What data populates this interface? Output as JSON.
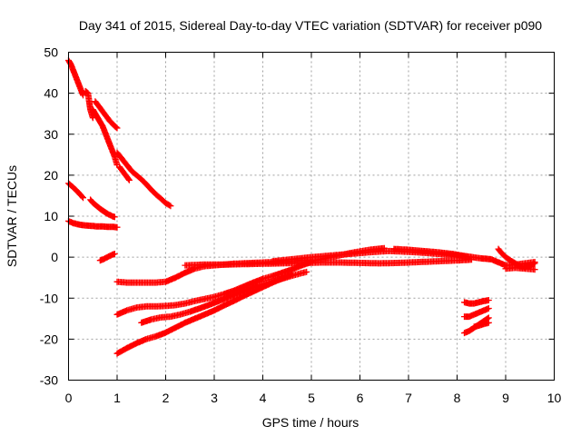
{
  "chart_data": {
    "type": "scatter",
    "title": "Day 341 of 2015, Sidereal Day-to-day VTEC variation (SDTVAR) for receiver p090",
    "xlabel": "GPS time / hours",
    "ylabel": "SDTVAR / TECUs",
    "xlim": [
      0,
      10
    ],
    "ylim": [
      -30,
      50
    ],
    "x_ticks": [
      0,
      1,
      2,
      3,
      4,
      5,
      6,
      7,
      8,
      9,
      10
    ],
    "y_ticks": [
      -30,
      -20,
      -10,
      0,
      10,
      20,
      30,
      40,
      50
    ],
    "x_tick_labels": [
      "0",
      "1",
      "2",
      "3",
      "4",
      "5",
      "6",
      "7",
      "8",
      "9",
      "10"
    ],
    "y_tick_labels": [
      "-30",
      "-20",
      "-10",
      "0",
      "10",
      "20",
      "30",
      "40",
      "50"
    ],
    "grid": true,
    "legend": "none",
    "marker": "plus",
    "color": "#ff0000",
    "series": [
      {
        "x": [
          0.0,
          0.05,
          0.1,
          0.15,
          0.2,
          0.25,
          0.3
        ],
        "y": [
          48,
          47,
          45.5,
          44,
          42.5,
          41,
          39.5
        ]
      },
      {
        "x": [
          0.35,
          0.4,
          0.45,
          0.5
        ],
        "y": [
          40.5,
          40,
          36,
          34
        ]
      },
      {
        "x": [
          0.5,
          0.55,
          0.6,
          0.65,
          0.7,
          0.75,
          0.8,
          0.85,
          0.9,
          0.95,
          1.0
        ],
        "y": [
          36,
          35,
          34,
          33,
          32,
          30.5,
          29,
          27.5,
          26,
          24.5,
          22.5
        ]
      },
      {
        "x": [
          0.55,
          0.6,
          0.65,
          0.7,
          0.75,
          0.8,
          0.85,
          0.9,
          0.95,
          1.0
        ],
        "y": [
          38,
          37.2,
          36.4,
          35.6,
          34.8,
          34,
          33.2,
          32.6,
          32,
          31.5
        ]
      },
      {
        "x": [
          1.0,
          1.1,
          1.2,
          1.3,
          1.4,
          1.5,
          1.6,
          1.7,
          1.8,
          1.9,
          2.0,
          2.1
        ],
        "y": [
          25.5,
          24,
          22.5,
          21,
          20,
          19,
          17.8,
          16.5,
          15.3,
          14.3,
          13.2,
          12.5
        ]
      },
      {
        "x": [
          1.05,
          1.1,
          1.15,
          1.2,
          1.25
        ],
        "y": [
          22,
          21.2,
          20.4,
          19.6,
          18.8
        ]
      },
      {
        "x": [
          0.0,
          0.1,
          0.2,
          0.3
        ],
        "y": [
          18,
          17,
          15.8,
          14.5
        ]
      },
      {
        "x": [
          0.45,
          0.5,
          0.55,
          0.6,
          0.65,
          0.7,
          0.75,
          0.8,
          0.85,
          0.9,
          0.95
        ],
        "y": [
          14,
          13.3,
          12.8,
          12.3,
          11.8,
          11.4,
          11,
          10.6,
          10.3,
          10,
          9.8
        ]
      },
      {
        "x": [
          0.0,
          0.1,
          0.2,
          0.3,
          0.4,
          0.5,
          0.6,
          0.7,
          0.8,
          0.9,
          1.0
        ],
        "y": [
          8.8,
          8.3,
          8,
          7.8,
          7.7,
          7.6,
          7.5,
          7.5,
          7.4,
          7.4,
          7.3
        ]
      },
      {
        "x": [
          0.65,
          0.7,
          0.75,
          0.8,
          0.85,
          0.9,
          0.95
        ],
        "y": [
          -0.8,
          -0.6,
          -0.3,
          0,
          0.3,
          0.6,
          0.8
        ]
      },
      {
        "x": [
          1.0,
          1.2,
          1.4,
          1.6,
          1.8,
          2.0,
          2.2,
          2.4,
          2.6,
          2.8,
          3.0,
          3.2,
          3.4,
          3.6,
          3.8,
          4.0,
          4.2,
          4.4,
          4.6,
          4.8,
          5.0
        ],
        "y": [
          -6,
          -6.2,
          -6.2,
          -6.2,
          -6.2,
          -6,
          -5,
          -3.8,
          -2.8,
          -2.2,
          -2,
          -1.8,
          -1.6,
          -1.5,
          -1.4,
          -1.3,
          -1.2,
          -1.1,
          -1,
          -0.8,
          -0.7
        ]
      },
      {
        "x": [
          2.4,
          2.8,
          3.2,
          3.6,
          4.0,
          4.4,
          4.8,
          5.2,
          5.6,
          6.0,
          6.4,
          6.8,
          7.2,
          7.6,
          8.0,
          8.3
        ],
        "y": [
          -2,
          -1.8,
          -1.8,
          -1.7,
          -1.6,
          -1.5,
          -1.4,
          -1.3,
          -1.3,
          -1.4,
          -1.5,
          -1.4,
          -1.2,
          -1,
          -0.8,
          -0.6
        ]
      },
      {
        "x": [
          4.2,
          4.6,
          5.0,
          5.4,
          5.8,
          6.2,
          6.6,
          7.0,
          7.4,
          7.8,
          8.2
        ],
        "y": [
          -1,
          -0.5,
          0,
          0.4,
          0.8,
          1.2,
          1.5,
          1.3,
          1.0,
          0.6,
          0.2
        ]
      },
      {
        "x": [
          5.0,
          5.4,
          5.8,
          6.2,
          6.5
        ],
        "y": [
          -1,
          0,
          1,
          1.8,
          2.2
        ]
      },
      {
        "x": [
          6.7,
          7.0,
          7.3,
          7.6,
          7.9,
          8.2,
          8.5
        ],
        "y": [
          2,
          1.8,
          1.5,
          1.2,
          0.8,
          0.2,
          -0.3
        ]
      },
      {
        "x": [
          8.5,
          8.6,
          8.7,
          8.8,
          8.9,
          9.0,
          9.2,
          9.4,
          9.6
        ],
        "y": [
          -0.3,
          -0.4,
          -0.5,
          -1,
          -1.5,
          -2,
          -1.8,
          -1.5,
          -1.2
        ]
      },
      {
        "x": [
          8.85,
          8.9,
          9.0,
          9.1,
          9.2,
          9.3,
          9.4,
          9.5,
          9.6
        ],
        "y": [
          2,
          1.2,
          0,
          -0.8,
          -1.5,
          -2.2,
          -2.5,
          -2,
          -1.5
        ]
      },
      {
        "x": [
          9.0,
          9.2,
          9.4,
          9.6
        ],
        "y": [
          -2.8,
          -2.6,
          -2.8,
          -3
        ]
      },
      {
        "x": [
          1.0,
          1.2,
          1.4,
          1.6,
          1.8,
          2.0,
          2.2,
          2.4,
          2.6,
          2.8,
          3.0,
          3.2,
          3.4,
          3.6,
          3.8,
          4.0,
          4.2,
          4.4,
          4.6,
          4.8,
          5.0
        ],
        "y": [
          -14,
          -13,
          -12.3,
          -12,
          -12,
          -11.9,
          -11.7,
          -11.3,
          -10.7,
          -10.2,
          -9.7,
          -9,
          -8.2,
          -7.2,
          -6.2,
          -5.3,
          -4.6,
          -3.8,
          -3,
          -2,
          -1.2
        ]
      },
      {
        "x": [
          1.5,
          1.7,
          1.9,
          2.1,
          2.3,
          2.5,
          2.7,
          2.9,
          3.1,
          3.3,
          3.5,
          3.7,
          3.9,
          4.1,
          4.3,
          4.5,
          4.7,
          4.9
        ],
        "y": [
          -16,
          -15.2,
          -14.7,
          -14.5,
          -14,
          -13.3,
          -12.5,
          -11.6,
          -10.7,
          -9.7,
          -8.7,
          -7.8,
          -6.9,
          -6.2,
          -5.6,
          -4.9,
          -4.2,
          -3.6
        ]
      },
      {
        "x": [
          1.0,
          1.2,
          1.4,
          1.6,
          1.8,
          2.0,
          2.2,
          2.4,
          2.6,
          2.8,
          3.0,
          3.2,
          3.4,
          3.6,
          3.8,
          4.0,
          4.2,
          4.4,
          4.6
        ],
        "y": [
          -23.5,
          -22.2,
          -21,
          -20,
          -19.3,
          -18.4,
          -17.2,
          -16,
          -15,
          -14,
          -13,
          -11.8,
          -10.7,
          -9.5,
          -8.4,
          -7.3,
          -6.2,
          -5.2,
          -4.2
        ]
      },
      {
        "x": [
          8.15,
          8.25,
          8.35,
          8.45,
          8.55,
          8.65
        ],
        "y": [
          -11,
          -11.3,
          -11.3,
          -11,
          -10.7,
          -10.5
        ]
      },
      {
        "x": [
          8.15,
          8.25,
          8.35,
          8.45,
          8.55,
          8.65
        ],
        "y": [
          -14.5,
          -14.5,
          -14,
          -13.5,
          -13,
          -12.5
        ]
      },
      {
        "x": [
          8.15,
          8.25,
          8.35,
          8.45,
          8.55,
          8.65
        ],
        "y": [
          -18.5,
          -18,
          -17.2,
          -16.4,
          -15.6,
          -14.8
        ]
      },
      {
        "x": [
          8.35,
          8.45,
          8.55,
          8.65
        ],
        "y": [
          -17,
          -16.7,
          -16.3,
          -16
        ]
      }
    ]
  }
}
